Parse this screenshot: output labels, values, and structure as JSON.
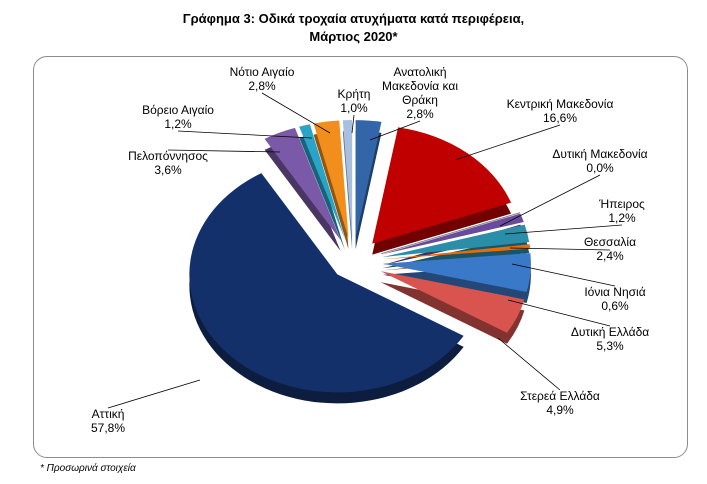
{
  "title_line1": "Γράφημα 3: Οδικά τροχαία ατυχήματα κατά περιφέρεια,",
  "title_line2": "Μάρτιος 2020*",
  "footnote": "* Προσωρινά στοιχεία",
  "chart_data": {
    "type": "pie",
    "exploded": true,
    "three_d": true,
    "start_angle_deg": 0,
    "direction": "clockwise",
    "slices": [
      {
        "name": "Ανατολική Μακεδονία και Θράκη",
        "label_lines": [
          "Ανατολική",
          "Μακεδονία και",
          "Θράκη"
        ],
        "value": 2.8,
        "value_label": "2,8%",
        "color": "#3366a8"
      },
      {
        "name": "Κεντρική Μακεδονία",
        "label_lines": [
          "Κεντρική Μακεδονία"
        ],
        "value": 16.6,
        "value_label": "16,6%",
        "color": "#c00000"
      },
      {
        "name": "Δυτική Μακεδονία",
        "label_lines": [
          "Δυτική Μακεδονία"
        ],
        "value": 0.0,
        "value_label": "0,0%",
        "color": "#7f7f7f"
      },
      {
        "name": "Ήπειρος",
        "label_lines": [
          "Ήπειρος"
        ],
        "value": 1.2,
        "value_label": "1,2%",
        "color": "#6a4a9c"
      },
      {
        "name": "Θεσσαλία",
        "label_lines": [
          "Θεσσαλία"
        ],
        "value": 2.4,
        "value_label": "2,4%",
        "color": "#2b8ea8"
      },
      {
        "name": "Ιόνια Νησιά",
        "label_lines": [
          "Ιόνια Νησιά"
        ],
        "value": 0.6,
        "value_label": "0,6%",
        "color": "#e46c0a"
      },
      {
        "name": "Δυτική Ελλάδα",
        "label_lines": [
          "Δυτική Ελλάδα"
        ],
        "value": 5.3,
        "value_label": "5,3%",
        "color": "#3a78c8"
      },
      {
        "name": "Στερεά Ελλάδα",
        "label_lines": [
          "Στερεά Ελλάδα"
        ],
        "value": 4.9,
        "value_label": "4,9%",
        "color": "#d9534f"
      },
      {
        "name": "Αττική",
        "label_lines": [
          "Αττική"
        ],
        "value": 57.8,
        "value_label": "57,8%",
        "color": "#14306b"
      },
      {
        "name": "Πελοπόννησος",
        "label_lines": [
          "Πελοπόννησος"
        ],
        "value": 3.6,
        "value_label": "3,6%",
        "color": "#7a5aa8"
      },
      {
        "name": "Βόρειο Αιγαίο",
        "label_lines": [
          "Βόρειο Αιγαίο"
        ],
        "value": 1.2,
        "value_label": "1,2%",
        "color": "#2aa3c8"
      },
      {
        "name": "Νότιο Αιγαίο",
        "label_lines": [
          "Νότιο Αιγαίο"
        ],
        "value": 2.8,
        "value_label": "2,8%",
        "color": "#f28e1c"
      },
      {
        "name": "Κρήτη",
        "label_lines": [
          "Κρήτη"
        ],
        "value": 1.0,
        "value_label": "1,0%",
        "color": "#a9bfe0"
      }
    ]
  }
}
